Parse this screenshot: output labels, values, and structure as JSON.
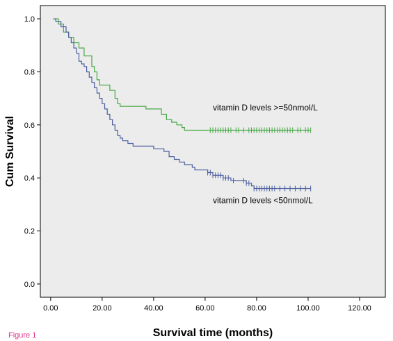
{
  "figure_label": "Figure 1",
  "chart_data": {
    "type": "line",
    "xlabel": "Survival time (months)",
    "ylabel": "Cum Survival",
    "xlim": [
      -4,
      130
    ],
    "ylim": [
      -0.05,
      1.05
    ],
    "xticks": [
      0,
      20,
      40,
      60,
      80,
      100,
      120
    ],
    "xtick_labels": [
      "0.00",
      "20.00",
      "40.00",
      "60.00",
      "80.00",
      "100.00",
      "120.00"
    ],
    "yticks": [
      0,
      0.2,
      0.4,
      0.6,
      0.8,
      1.0
    ],
    "ytick_labels": [
      "0.0",
      "0.2",
      "0.4",
      "0.6",
      "0.8",
      "1.0"
    ],
    "grid": false,
    "plot_background": "#ececec",
    "series": [
      {
        "name": "vitamin D levels >=50nmol/L",
        "color": "#45a845",
        "steps": [
          [
            1,
            1.0
          ],
          [
            3,
            0.98
          ],
          [
            5,
            0.95
          ],
          [
            7,
            0.93
          ],
          [
            9,
            0.91
          ],
          [
            11,
            0.89
          ],
          [
            13,
            0.86
          ],
          [
            16,
            0.82
          ],
          [
            17,
            0.8
          ],
          [
            18,
            0.77
          ],
          [
            19,
            0.75
          ],
          [
            23,
            0.73
          ],
          [
            25,
            0.7
          ],
          [
            26,
            0.68
          ],
          [
            27,
            0.67
          ],
          [
            36,
            0.67
          ],
          [
            37,
            0.66
          ],
          [
            41,
            0.66
          ],
          [
            43,
            0.64
          ],
          [
            45,
            0.62
          ],
          [
            47,
            0.61
          ],
          [
            49,
            0.6
          ],
          [
            51,
            0.59
          ],
          [
            52,
            0.58
          ],
          [
            101,
            0.58
          ]
        ],
        "censored_x": [
          62,
          63,
          64,
          65,
          66,
          67,
          68,
          69,
          70,
          72,
          73,
          75,
          77,
          78,
          79,
          80,
          81,
          82,
          83,
          84,
          85,
          86,
          87,
          88,
          89,
          90,
          91,
          92,
          93,
          94,
          96,
          97,
          99,
          100,
          101
        ],
        "censored_y": 0.58
      },
      {
        "name": "vitamin D levels <50nmol/L",
        "color": "#4a5fa0",
        "steps": [
          [
            1,
            1.0
          ],
          [
            2,
            0.99
          ],
          [
            4,
            0.97
          ],
          [
            6,
            0.95
          ],
          [
            7,
            0.93
          ],
          [
            8,
            0.91
          ],
          [
            9,
            0.89
          ],
          [
            10,
            0.87
          ],
          [
            11,
            0.84
          ],
          [
            12,
            0.83
          ],
          [
            13,
            0.82
          ],
          [
            14,
            0.8
          ],
          [
            15,
            0.78
          ],
          [
            16,
            0.76
          ],
          [
            17,
            0.74
          ],
          [
            18,
            0.72
          ],
          [
            19,
            0.7
          ],
          [
            20,
            0.68
          ],
          [
            21,
            0.66
          ],
          [
            22,
            0.64
          ],
          [
            23,
            0.62
          ],
          [
            24,
            0.6
          ],
          [
            25,
            0.58
          ],
          [
            26,
            0.56
          ],
          [
            27,
            0.55
          ],
          [
            28,
            0.54
          ],
          [
            30,
            0.53
          ],
          [
            32,
            0.52
          ],
          [
            40,
            0.51
          ],
          [
            44,
            0.5
          ],
          [
            46,
            0.48
          ],
          [
            48,
            0.47
          ],
          [
            50,
            0.46
          ],
          [
            52,
            0.45
          ],
          [
            54,
            0.45
          ],
          [
            55,
            0.44
          ],
          [
            56,
            0.43
          ],
          [
            61,
            0.42
          ],
          [
            63,
            0.41
          ],
          [
            67,
            0.4
          ],
          [
            70,
            0.39
          ],
          [
            76,
            0.38
          ],
          [
            78,
            0.37
          ],
          [
            79,
            0.36
          ],
          [
            101,
            0.36
          ]
        ],
        "censored_x": [
          61,
          62,
          63,
          64,
          65,
          66,
          67,
          68,
          69,
          71,
          75,
          76,
          77,
          79,
          80,
          81,
          82,
          83,
          84,
          85,
          86,
          87,
          89,
          91,
          93,
          95,
          97,
          99,
          101
        ],
        "censored_y_by_x": true
      }
    ],
    "annotations": [
      {
        "text": "vitamin D levels >=50nmol/L",
        "x": 63,
        "y": 0.655
      },
      {
        "text": "vitamin D levels <50nmol/L",
        "x": 63,
        "y": 0.305
      }
    ]
  }
}
